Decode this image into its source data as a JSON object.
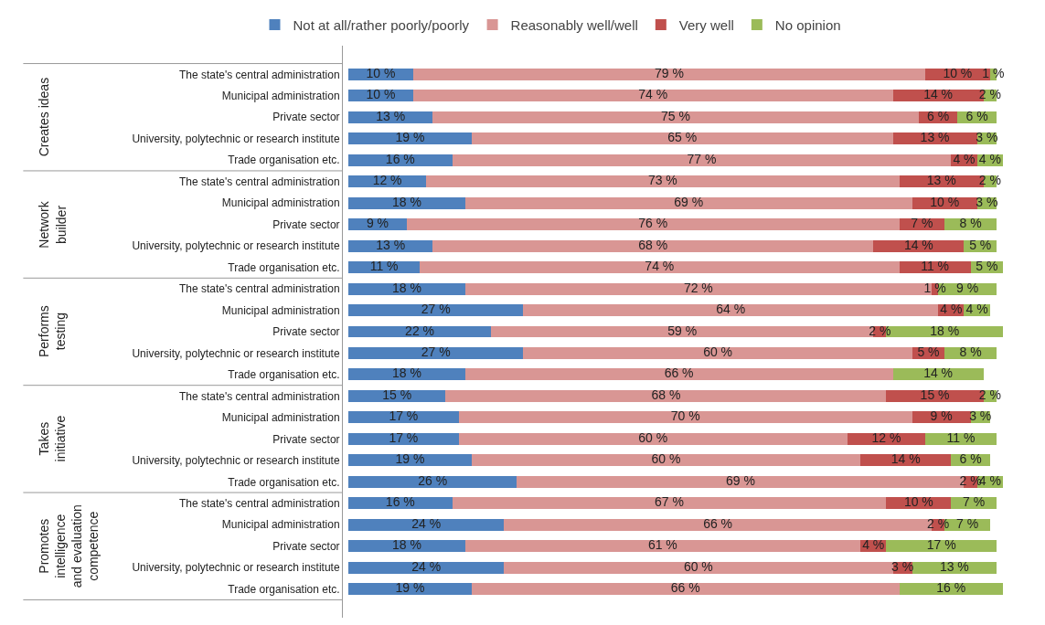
{
  "chart_data": {
    "type": "bar",
    "orientation": "horizontal",
    "stacked": true,
    "legend": "top",
    "grid": false,
    "tick_labels": "y",
    "categories": [
      "The state's central administration",
      "Municipal administration",
      "Private sector",
      "University, polytechnic or research institute",
      "Trade organisation etc.",
      "The state's central administration",
      "Municipal administration",
      "Private sector",
      "University, polytechnic or research institute",
      "Trade organisation etc.",
      "The state's central administration",
      "Municipal administration",
      "Private sector",
      "University, polytechnic or research institute",
      "Trade organisation etc.",
      "The state's central administration",
      "Municipal administration",
      "Private sector",
      "University, polytechnic or research institute",
      "Trade organisation etc.",
      "The state's central administration",
      "Municipal administration",
      "Private sector",
      "University, polytechnic or research institute",
      "Trade organisation etc."
    ],
    "annotations": [
      "Creates ideas",
      "Network builder",
      "Performs testing",
      "Takes initiative",
      "Promotes intelligence and evaluation competence"
    ],
    "series": [
      {
        "name": "Not at all/rather poorly/poorly",
        "color": "#4f81bd",
        "values": [
          10,
          10,
          13,
          19,
          16,
          12,
          18,
          9,
          13,
          11,
          18,
          27,
          22,
          27,
          18,
          15,
          17,
          17,
          19,
          26,
          16,
          24,
          18,
          24,
          19
        ],
        "value_labels": [
          "10 %",
          "10 %",
          "13 %",
          "19 %",
          "16 %",
          "12 %",
          "18 %",
          "9 %",
          "13 %",
          "11 %",
          "18 %",
          "27 %",
          "22 %",
          "27 %",
          "18 %",
          "15 %",
          "17 %",
          "17 %",
          "19 %",
          "26 %",
          "16 %",
          "24 %",
          "18 %",
          "24 %",
          "19 %"
        ]
      },
      {
        "name": "Reasonably well/well",
        "color": "#d99694",
        "values": [
          79,
          74,
          75,
          65,
          77,
          73,
          69,
          76,
          68,
          74,
          72,
          64,
          59,
          60,
          66,
          68,
          70,
          60,
          60,
          69,
          67,
          66,
          61,
          60,
          66
        ],
        "value_labels": [
          "79 %",
          "74 %",
          "75 %",
          "65 %",
          "77 %",
          "73 %",
          "69 %",
          "76 %",
          "68 %",
          "74 %",
          "72 %",
          "64 %",
          "59 %",
          "60 %",
          "66 %",
          "68 %",
          "70 %",
          "60 %",
          "60 %",
          "69 %",
          "67 %",
          "66 %",
          "61 %",
          "60 %",
          "66 %"
        ]
      },
      {
        "name": "Very well",
        "color": "#c0504d",
        "values": [
          10,
          14,
          6,
          13,
          4,
          13,
          10,
          7,
          14,
          11,
          1,
          4,
          2,
          5,
          null,
          15,
          9,
          12,
          14,
          2,
          10,
          2,
          4,
          3,
          null
        ],
        "value_labels": [
          "10 %",
          "14 %",
          "6 %",
          "13 %",
          "4 %",
          "13 %",
          "10 %",
          "7 %",
          "14 %",
          "11 %",
          "1 %",
          "4 %",
          "2 %",
          "5 %",
          null,
          "15 %",
          "9 %",
          "12 %",
          "14 %",
          "2 %",
          "10 %",
          "2 %",
          "4 %",
          "3 %",
          null
        ]
      },
      {
        "name": "No opinion",
        "color": "#9bbb59",
        "values": [
          1,
          2,
          6,
          3,
          4,
          2,
          3,
          8,
          5,
          5,
          9,
          4,
          18,
          8,
          14,
          2,
          3,
          11,
          6,
          4,
          7,
          7,
          17,
          13,
          16
        ],
        "value_labels": [
          "1 %",
          "2 %",
          "6 %",
          "3 %",
          "4 %",
          "2 %",
          "3 %",
          "8 %",
          "5 %",
          "5 %",
          "9 %",
          "4 %",
          "18 %",
          "8 %",
          "14 %",
          "2 %",
          "3 %",
          "11 %",
          "6 %",
          "4 %",
          "7 %",
          "7 %",
          "17 %",
          "13 %",
          "16 %"
        ]
      }
    ]
  }
}
